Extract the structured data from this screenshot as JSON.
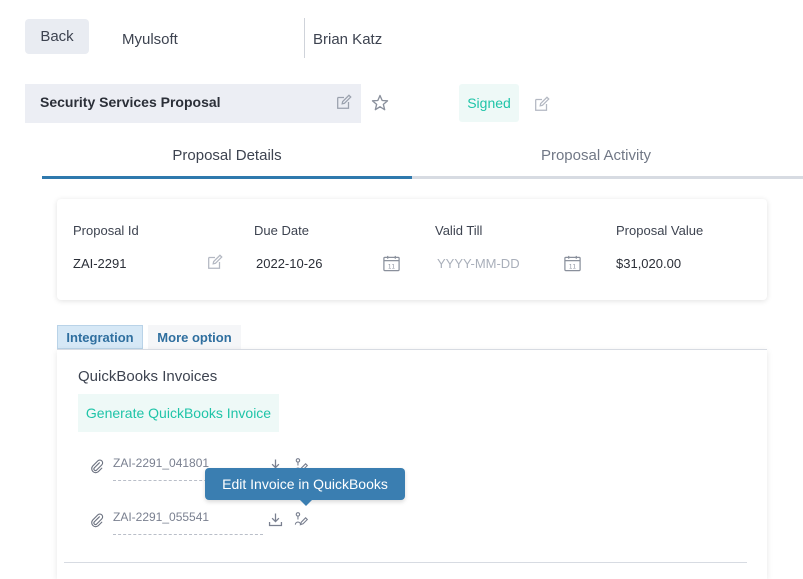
{
  "header": {
    "back_label": "Back",
    "company": "Myulsoft",
    "contact": "Brian Katz"
  },
  "proposal": {
    "title": "Security Services Proposal",
    "status": "Signed"
  },
  "tabs": [
    {
      "label": "Proposal Details",
      "active": true
    },
    {
      "label": "Proposal Activity",
      "active": false
    }
  ],
  "details": {
    "proposal_id_label": "Proposal Id",
    "proposal_id_value": "ZAI-2291",
    "due_date_label": "Due Date",
    "due_date_value": "2022-10-26",
    "valid_till_label": "Valid Till",
    "valid_till_placeholder": "YYYY-MM-DD",
    "proposal_value_label": "Proposal Value",
    "proposal_value_value": "$31,020.00",
    "calendar_day": "11"
  },
  "subtabs": [
    {
      "label": "Integration",
      "active": true
    },
    {
      "label": "More option",
      "active": false
    }
  ],
  "integration": {
    "heading": "QuickBooks Invoices",
    "generate_label": "Generate QuickBooks Invoice",
    "invoices": [
      {
        "name": "ZAI-2291_041801"
      },
      {
        "name": "ZAI-2291_055541"
      }
    ],
    "tooltip": "Edit Invoice in QuickBooks"
  },
  "colors": {
    "accent": "#2f79ad",
    "success": "#1fc4a8",
    "tooltip_bg": "#3a7eb1"
  },
  "icons": [
    "edit-icon",
    "star-icon",
    "calendar-icon",
    "paperclip-icon",
    "download-icon",
    "quickbooks-edit-icon"
  ]
}
